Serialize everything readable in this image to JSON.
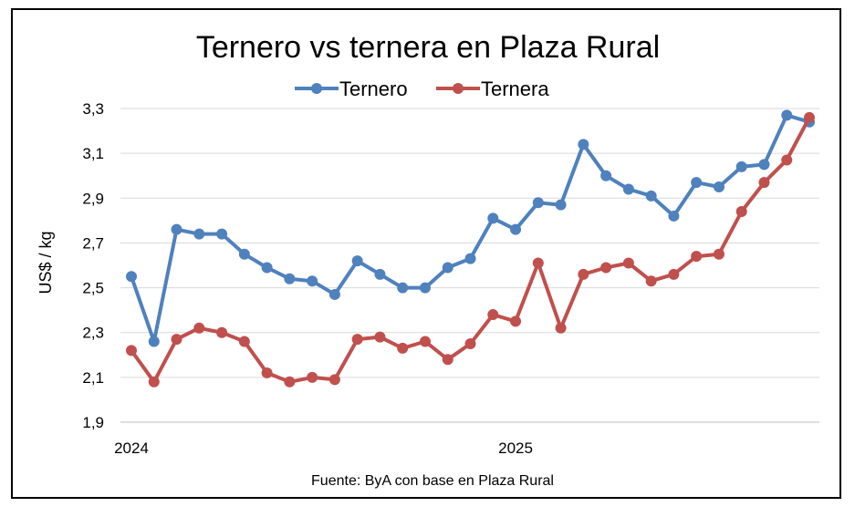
{
  "chart_data": {
    "type": "line",
    "title": "Ternero vs ternera en Plaza Rural",
    "ylabel": "US$ / kg",
    "xlabel": "",
    "source": "Fuente: ByA con base en Plaza Rural",
    "ylim": [
      1.9,
      3.3
    ],
    "yticks": [
      "1,9",
      "2,1",
      "2,3",
      "2,5",
      "2,7",
      "2,9",
      "3,1",
      "3,3"
    ],
    "ytick_values": [
      1.9,
      2.1,
      2.3,
      2.5,
      2.7,
      2.9,
      3.1,
      3.3
    ],
    "xtick_labels": [
      {
        "label": "2024",
        "index": 0
      },
      {
        "label": "2025",
        "index": 17
      }
    ],
    "grid": true,
    "legend": "top-center",
    "series": [
      {
        "name": "Ternero",
        "color": "#4f81bd",
        "values": [
          2.55,
          2.26,
          2.76,
          2.74,
          2.74,
          2.65,
          2.59,
          2.54,
          2.53,
          2.47,
          2.62,
          2.56,
          2.5,
          2.5,
          2.59,
          2.63,
          2.81,
          2.76,
          2.88,
          2.87,
          3.14,
          3.0,
          2.94,
          2.91,
          2.82,
          2.97,
          2.95,
          3.04,
          3.05,
          3.27,
          3.24
        ]
      },
      {
        "name": "Ternera",
        "color": "#c0504d",
        "values": [
          2.22,
          2.08,
          2.27,
          2.32,
          2.3,
          2.26,
          2.12,
          2.08,
          2.1,
          2.09,
          2.27,
          2.28,
          2.23,
          2.26,
          2.18,
          2.25,
          2.38,
          2.35,
          2.61,
          2.32,
          2.56,
          2.59,
          2.61,
          2.53,
          2.56,
          2.64,
          2.65,
          2.84,
          2.97,
          3.07,
          3.26
        ]
      }
    ]
  }
}
